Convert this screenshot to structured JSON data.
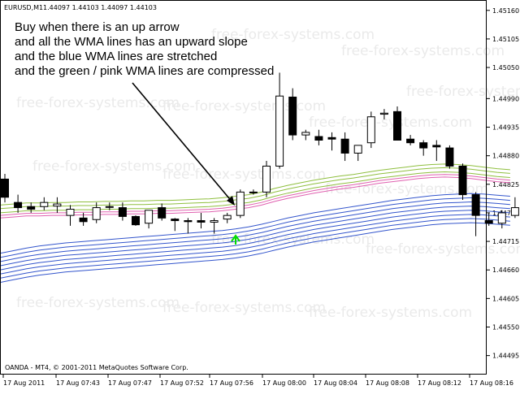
{
  "header": {
    "symbol": "EURUSD,M1",
    "ohlc": "1.44097 1.44103 1.44097 1.44103"
  },
  "annotation": {
    "lines": [
      "Buy when there is an up arrow",
      "and all the WMA lines has an upward slope",
      "and the blue WMA lines are stretched",
      "and the green / pink WMA lines are compressed"
    ]
  },
  "footer": {
    "copyright": "OANDA - MT4, © 2001-2011 MetaQuotes Software Corp."
  },
  "watermark": "free-forex-systems.com",
  "colors": {
    "green_wma": "#8fbf3f",
    "pink_wma": "#e060b0",
    "blue_wma": "#3355cc",
    "buy_arrow": "#00dd00",
    "candle": "#000000"
  },
  "chart_data": {
    "type": "candlestick",
    "price_axis": [
      "1.45160",
      "1.45105",
      "1.45050",
      "1.44990",
      "1.44935",
      "1.44880",
      "1.44825",
      "1.44770",
      "1.44715",
      "1.44660",
      "1.44605",
      "1.44550",
      "1.44495"
    ],
    "time_axis": [
      "17 Aug 2011",
      "17 Aug 07:43",
      "17 Aug 07:47",
      "17 Aug 07:52",
      "17 Aug 07:56",
      "17 Aug 08:00",
      "17 Aug 08:04",
      "17 Aug 08:08",
      "17 Aug 08:12",
      "17 Aug 08:16"
    ],
    "ylim": [
      1.4446,
      1.4518
    ],
    "candles": [
      {
        "o": 1.44835,
        "h": 1.44845,
        "l": 1.4479,
        "c": 1.448
      },
      {
        "o": 1.4479,
        "h": 1.44805,
        "l": 1.4477,
        "c": 1.4478
      },
      {
        "o": 1.44782,
        "h": 1.4479,
        "l": 1.4477,
        "c": 1.44777
      },
      {
        "o": 1.44782,
        "h": 1.448,
        "l": 1.44775,
        "c": 1.4479
      },
      {
        "o": 1.44783,
        "h": 1.448,
        "l": 1.4477,
        "c": 1.44787
      },
      {
        "o": 1.44765,
        "h": 1.44785,
        "l": 1.44745,
        "c": 1.44777
      },
      {
        "o": 1.4476,
        "h": 1.4477,
        "l": 1.44745,
        "c": 1.44753
      },
      {
        "o": 1.44757,
        "h": 1.4479,
        "l": 1.4475,
        "c": 1.4478
      },
      {
        "o": 1.44782,
        "h": 1.4479,
        "l": 1.44775,
        "c": 1.44782
      },
      {
        "o": 1.4478,
        "h": 1.4479,
        "l": 1.44755,
        "c": 1.44763
      },
      {
        "o": 1.44763,
        "h": 1.44765,
        "l": 1.44745,
        "c": 1.44747
      },
      {
        "o": 1.4475,
        "h": 1.44775,
        "l": 1.4474,
        "c": 1.44775
      },
      {
        "o": 1.4478,
        "h": 1.44788,
        "l": 1.44755,
        "c": 1.4476
      },
      {
        "o": 1.44758,
        "h": 1.4476,
        "l": 1.44735,
        "c": 1.44755
      },
      {
        "o": 1.44755,
        "h": 1.4476,
        "l": 1.4473,
        "c": 1.44753
      },
      {
        "o": 1.44755,
        "h": 1.4477,
        "l": 1.4474,
        "c": 1.44752
      },
      {
        "o": 1.44752,
        "h": 1.4476,
        "l": 1.4473,
        "c": 1.44755
      },
      {
        "o": 1.44758,
        "h": 1.4477,
        "l": 1.4475,
        "c": 1.44765
      },
      {
        "o": 1.44765,
        "h": 1.44815,
        "l": 1.4476,
        "c": 1.4481
      },
      {
        "o": 1.4481,
        "h": 1.44815,
        "l": 1.44805,
        "c": 1.4481
      },
      {
        "o": 1.4481,
        "h": 1.4487,
        "l": 1.448,
        "c": 1.4486
      },
      {
        "o": 1.4486,
        "h": 1.4504,
        "l": 1.44855,
        "c": 1.44995
      },
      {
        "o": 1.44993,
        "h": 1.4501,
        "l": 1.4491,
        "c": 1.4492
      },
      {
        "o": 1.4492,
        "h": 1.4493,
        "l": 1.4491,
        "c": 1.44925
      },
      {
        "o": 1.44917,
        "h": 1.4493,
        "l": 1.449,
        "c": 1.4491
      },
      {
        "o": 1.44915,
        "h": 1.44925,
        "l": 1.4489,
        "c": 1.44912
      },
      {
        "o": 1.44912,
        "h": 1.44925,
        "l": 1.4487,
        "c": 1.44885
      },
      {
        "o": 1.44885,
        "h": 1.449,
        "l": 1.4487,
        "c": 1.449
      },
      {
        "o": 1.44905,
        "h": 1.44965,
        "l": 1.44895,
        "c": 1.44955
      },
      {
        "o": 1.4496,
        "h": 1.4497,
        "l": 1.4495,
        "c": 1.44962
      },
      {
        "o": 1.44965,
        "h": 1.44975,
        "l": 1.4491,
        "c": 1.4491
      },
      {
        "o": 1.44912,
        "h": 1.4492,
        "l": 1.449,
        "c": 1.44905
      },
      {
        "o": 1.44905,
        "h": 1.4491,
        "l": 1.4488,
        "c": 1.44895
      },
      {
        "o": 1.449,
        "h": 1.4491,
        "l": 1.4487,
        "c": 1.44897
      },
      {
        "o": 1.44895,
        "h": 1.449,
        "l": 1.44855,
        "c": 1.4486
      },
      {
        "o": 1.4486,
        "h": 1.44865,
        "l": 1.44795,
        "c": 1.44805
      },
      {
        "o": 1.44805,
        "h": 1.4481,
        "l": 1.44725,
        "c": 1.44765
      },
      {
        "o": 1.44755,
        "h": 1.4477,
        "l": 1.44745,
        "c": 1.4475
      },
      {
        "o": 1.4475,
        "h": 1.44775,
        "l": 1.4474,
        "c": 1.4477
      },
      {
        "o": 1.44765,
        "h": 1.448,
        "l": 1.4476,
        "c": 1.4478
      }
    ]
  }
}
